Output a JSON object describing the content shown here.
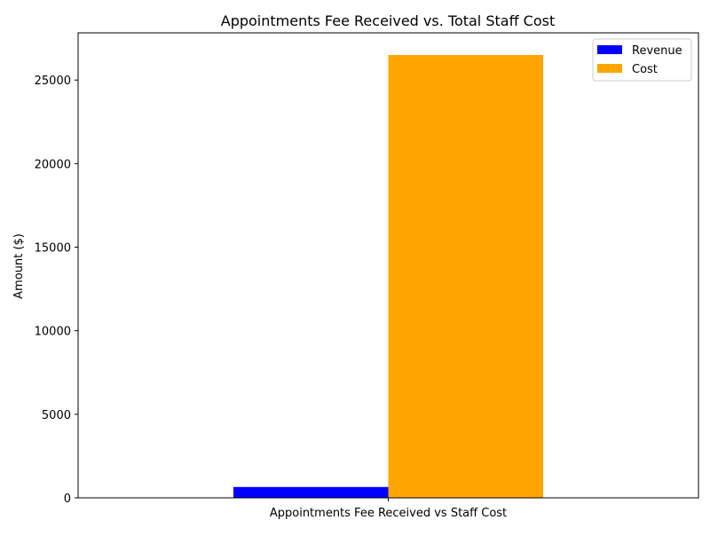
{
  "chart_data": {
    "type": "bar",
    "title": "Appointments Fee Received vs. Total Staff Cost",
    "xlabel": "",
    "ylabel": "Amount ($)",
    "categories": [
      "Appointments Fee Received vs Staff Cost"
    ],
    "series": [
      {
        "name": "Revenue",
        "values": [
          650
        ],
        "color": "#0000ff"
      },
      {
        "name": "Cost",
        "values": [
          26500
        ],
        "color": "#ffa500"
      }
    ],
    "ylim": [
      0,
      27825
    ],
    "yticks": [
      0,
      5000,
      10000,
      15000,
      20000,
      25000
    ],
    "grid": false,
    "legend_position": "top-right"
  }
}
